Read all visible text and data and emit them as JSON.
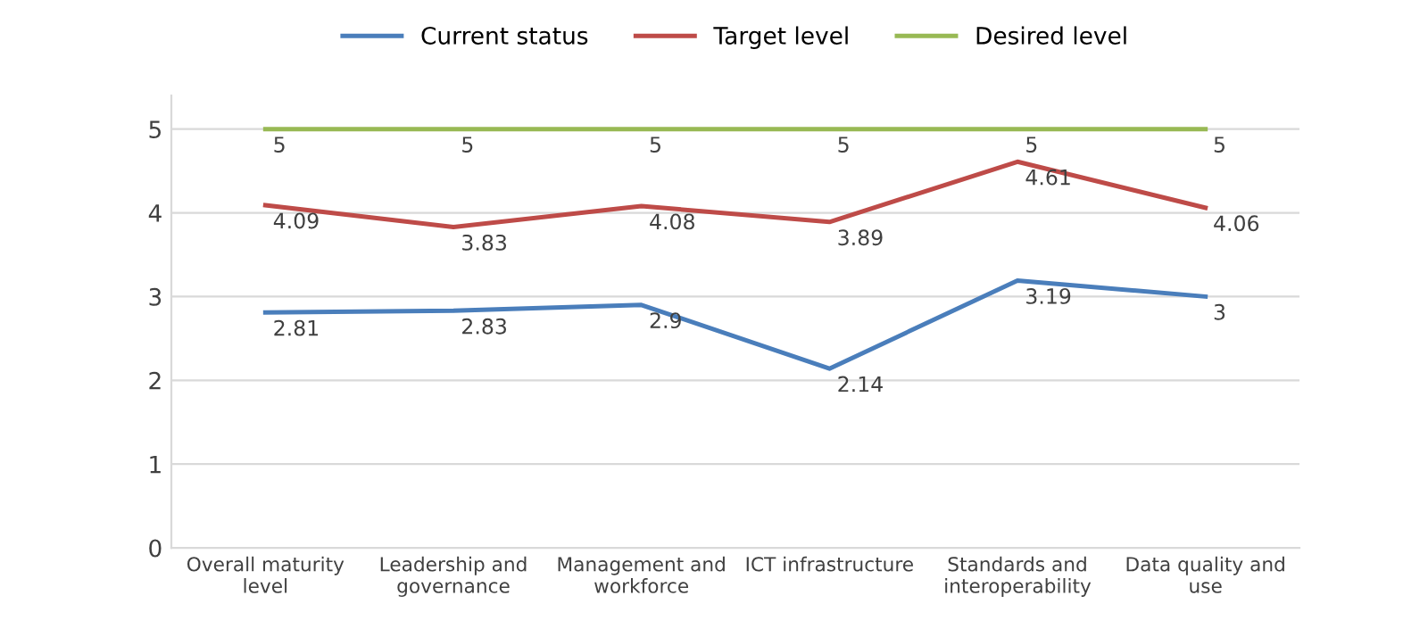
{
  "chart_data": {
    "type": "line",
    "categories": [
      "Overall maturity\nlevel",
      "Leadership and\ngovernance",
      "Management and\nworkforce",
      "ICT infrastructure",
      "Standards and\ninteroperability",
      "Data quality and\nuse"
    ],
    "series": [
      {
        "name": "Current status",
        "color": "#4a7ebb",
        "values": [
          2.81,
          2.83,
          2.9,
          2.14,
          3.19,
          3
        ]
      },
      {
        "name": "Target level",
        "color": "#be4b48",
        "values": [
          4.09,
          3.83,
          4.08,
          3.89,
          4.61,
          4.06
        ]
      },
      {
        "name": "Desired level",
        "color": "#98b954",
        "values": [
          5,
          5,
          5,
          5,
          5,
          5
        ]
      }
    ],
    "ylim": [
      0,
      5.4
    ],
    "yticks": [
      0,
      1,
      2,
      3,
      4,
      5
    ],
    "grid": "y",
    "legend": "top",
    "data_labels": true,
    "marker": "none",
    "line_style": "solid"
  }
}
